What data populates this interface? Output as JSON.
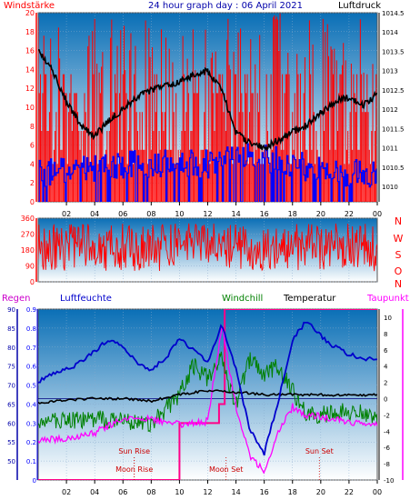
{
  "header": {
    "left_label": "Windstärke",
    "title": "24 hour graph day : 06 April 2021",
    "right_label": "Luftdruck"
  },
  "colors": {
    "wind": "#ff0000",
    "gust": "#0000ff",
    "pressure": "#000000",
    "humidity": "#0000cc",
    "windchill": "#008000",
    "temperature": "#000000",
    "dewpoint": "#ff00ff",
    "rain": "#0000ff",
    "sun_moon": "#cc0000",
    "dew_axis": "#ff00ff",
    "plot_top": "#0a6fb6",
    "plot_bottom": "#ffffff"
  },
  "chart_data": [
    {
      "type": "line",
      "name": "wind-pressure",
      "x_ticks": [
        "02",
        "04",
        "06",
        "08",
        "10",
        "12",
        "14",
        "16",
        "18",
        "20",
        "22",
        "00"
      ],
      "left_axis": {
        "label": "Windstärke",
        "ticks": [
          0,
          2,
          4,
          6,
          8,
          10,
          12,
          14,
          16,
          18,
          20
        ],
        "ylim": [
          0,
          20
        ]
      },
      "right_axis": {
        "label": "Luftdruck",
        "ticks": [
          1010,
          1010.5,
          1011,
          1011.5,
          1012,
          1012.5,
          1013,
          1013.5,
          1014,
          1014.5
        ],
        "ylim": [
          1009.6,
          1014.5
        ]
      },
      "pressure_profile": {
        "hours": [
          0,
          1,
          2,
          3,
          4,
          5,
          6,
          7,
          8,
          9,
          10,
          11,
          12,
          13,
          14,
          15,
          16,
          17,
          18,
          19,
          20,
          21,
          22,
          23,
          24
        ],
        "values": [
          1013.5,
          1013.0,
          1012.2,
          1011.6,
          1011.3,
          1011.7,
          1012.0,
          1012.3,
          1012.5,
          1012.6,
          1012.7,
          1012.9,
          1013.0,
          1012.5,
          1011.4,
          1011.1,
          1011.0,
          1011.2,
          1011.4,
          1011.6,
          1011.9,
          1012.2,
          1012.3,
          1012.1,
          1012.4
        ]
      },
      "wind_baseline": {
        "hours": [
          0,
          6,
          9,
          12,
          15,
          18,
          21,
          24
        ],
        "values": [
          3,
          4,
          4,
          4,
          5,
          4,
          3,
          3
        ]
      }
    },
    {
      "type": "line",
      "name": "wind-direction",
      "left_axis": {
        "ticks": [
          0,
          90,
          180,
          270,
          360
        ],
        "ylim": [
          0,
          360
        ]
      },
      "right_labels": [
        "N",
        "W",
        "S",
        "O",
        "N"
      ],
      "direction_range": [
        60,
        330
      ]
    },
    {
      "type": "line",
      "name": "humidity-temperature",
      "legend": {
        "rain": "Regen",
        "humidity": "Luftfeuchte",
        "windchill": "Windchill",
        "temperature": "Temperatur",
        "dewpoint": "Taupunkt"
      },
      "rain_axis": {
        "ticks": [
          0,
          0.1,
          0.2,
          0.3,
          0.4,
          0.5,
          0.6,
          0.7,
          0.8,
          0.9
        ],
        "ylim": [
          0,
          0.9
        ]
      },
      "humidity_axis": {
        "ticks": [
          50,
          55,
          60,
          65,
          70,
          75,
          80,
          85,
          90
        ],
        "ylim": [
          45,
          90
        ]
      },
      "temp_axis": {
        "ticks": [
          -10,
          -8,
          -6,
          -4,
          -2,
          0,
          2,
          4,
          6,
          8,
          10
        ],
        "ylim": [
          -10,
          11
        ]
      },
      "x_ticks": [
        "02",
        "04",
        "06",
        "08",
        "10",
        "12",
        "14",
        "16",
        "18",
        "20",
        "22",
        "00"
      ],
      "annotations": [
        {
          "label": "Sun Rise",
          "hour": 6.8
        },
        {
          "label": "Moon Rise",
          "hour": 6.8
        },
        {
          "label": "Moon Set",
          "hour": 13.3
        },
        {
          "label": "Sun Set",
          "hour": 19.9
        }
      ],
      "humidity_profile": {
        "hours": [
          0,
          1,
          2,
          3,
          4,
          5,
          6,
          7,
          8,
          9,
          10,
          11,
          12,
          13,
          14,
          15,
          16,
          17,
          18,
          19,
          20,
          21,
          22,
          23,
          24
        ],
        "values": [
          71,
          73,
          74,
          76,
          79,
          82,
          80,
          76,
          74,
          77,
          82,
          79,
          76,
          86,
          74,
          58,
          52,
          66,
          82,
          87,
          83,
          80,
          78,
          77,
          77
        ]
      },
      "temperature_profile": {
        "hours": [
          0,
          2,
          4,
          6,
          8,
          10,
          12,
          14,
          16,
          18,
          20,
          22,
          24
        ],
        "values": [
          -0.5,
          -0.2,
          0,
          0,
          -0.3,
          0.5,
          1,
          0.8,
          0.5,
          0.5,
          0.5,
          0.4,
          0.5
        ]
      },
      "windchill_profile": {
        "hours": [
          0,
          2,
          4,
          6,
          8,
          10,
          11,
          12,
          13,
          14,
          15,
          16,
          17,
          18,
          19,
          20,
          22,
          24
        ],
        "values": [
          -2.5,
          -2.8,
          -2.5,
          -2.8,
          -3.2,
          0.5,
          4,
          2.5,
          5,
          -1,
          5,
          3,
          4,
          1,
          -2,
          -2,
          -1.5,
          -2
        ]
      },
      "dewpoint_profile": {
        "hours": [
          0,
          2,
          4,
          6,
          8,
          10,
          12,
          13,
          14,
          15,
          16,
          17,
          18,
          19,
          20,
          22,
          24
        ],
        "values": [
          -5,
          -5,
          -4.2,
          -2.5,
          -2.5,
          -3.2,
          -2.8,
          9,
          -1,
          -7,
          -9,
          -4,
          -1,
          -2,
          -2.2,
          -2.8,
          -3.2
        ]
      },
      "rain_steps": {
        "hours": [
          0,
          10,
          10,
          12.8,
          12.8,
          13.2,
          13.2,
          24
        ],
        "values": [
          0,
          0,
          0.3,
          0.3,
          0.4,
          0.4,
          0.9,
          0.9
        ]
      }
    }
  ]
}
